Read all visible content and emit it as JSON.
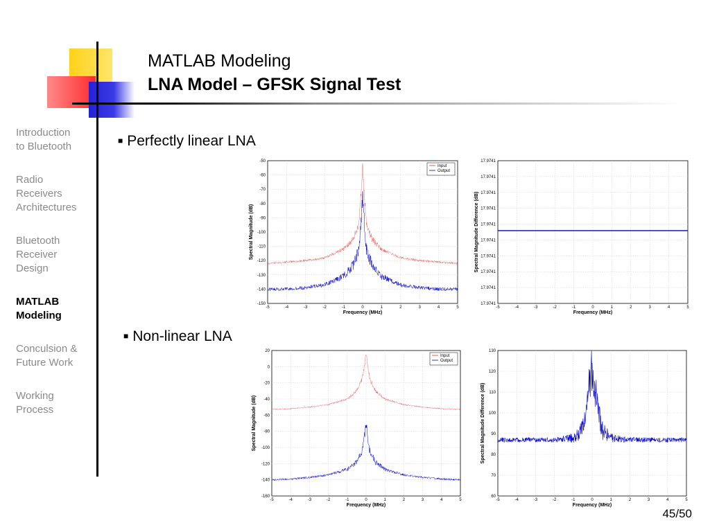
{
  "slide": {
    "title_line1": "MATLAB Modeling",
    "title_line2": "LNA Model – GFSK Signal Test",
    "page_number": "45/50"
  },
  "sidebar": {
    "items": [
      {
        "label": "Introduction\nto Bluetooth",
        "active": false
      },
      {
        "label": "Radio\nReceivers\nArchitectures",
        "active": false
      },
      {
        "label": "Bluetooth\nReceiver\nDesign",
        "active": false
      },
      {
        "label": "MATLAB\nModeling",
        "active": true
      },
      {
        "label": "Conculsion &\nFuture Work",
        "active": false
      },
      {
        "label": "Working\nProcess",
        "active": false
      }
    ]
  },
  "bullets": {
    "linear": "Perfectly linear LNA",
    "nonlinear": "Non-linear LNA"
  },
  "colors": {
    "input_series": "#e03030",
    "output_series": "#0000cc",
    "grid": "#cfcfcf"
  },
  "chart_data": [
    {
      "type": "line",
      "xlabel": "Frequency (MHz)",
      "ylabel": "Spectral Magnitude (dB)",
      "xlim": [
        -5,
        5
      ],
      "ylim": [
        -150,
        -50
      ],
      "xticks": [
        "-5",
        "-4",
        "-3",
        "-2",
        "-1",
        "0",
        "1",
        "2",
        "3",
        "4",
        "5"
      ],
      "yticks": [
        "-50",
        "-60",
        "-70",
        "-80",
        "-90",
        "-100",
        "-110",
        "-120",
        "-130",
        "-140",
        "-150"
      ],
      "legend": [
        "Input",
        "Output"
      ],
      "legend_position": "top-right",
      "grid": true,
      "series": [
        {
          "name": "Input",
          "x": [
            -5,
            -4,
            -3,
            -2,
            -1,
            -0.5,
            -0.2,
            0,
            0.2,
            0.5,
            1,
            2,
            3,
            4,
            5
          ],
          "y": [
            -122,
            -121,
            -120,
            -118,
            -112,
            -105,
            -95,
            -55,
            -95,
            -105,
            -112,
            -118,
            -120,
            -121,
            -122
          ]
        },
        {
          "name": "Output",
          "x": [
            -5,
            -4,
            -3,
            -2,
            -1,
            -0.5,
            -0.2,
            0,
            0.2,
            0.5,
            1,
            2,
            3,
            4,
            5
          ],
          "y": [
            -140,
            -140,
            -139,
            -137,
            -131,
            -123,
            -113,
            -75,
            -113,
            -123,
            -131,
            -137,
            -139,
            -140,
            -140
          ]
        }
      ]
    },
    {
      "type": "line",
      "xlabel": "Frequency (MHz)",
      "ylabel": "Spectral Magnitude Difference (dB)",
      "xlim": [
        -5,
        5
      ],
      "xticks": [
        "-5",
        "-4",
        "-3",
        "-2",
        "-1",
        "0",
        "1",
        "2",
        "3",
        "4",
        "5"
      ],
      "yticks": [
        "17.9741",
        "17.9741",
        "17.9741",
        "17.9741",
        "17.9741",
        "17.9741",
        "17.9741",
        "17.9741",
        "17.9741",
        "17.9741"
      ],
      "grid": true,
      "series": [
        {
          "x": [
            -5,
            5
          ],
          "y": [
            17.9741,
            17.9741
          ]
        }
      ]
    },
    {
      "type": "line",
      "xlabel": "Frequency (MHz)",
      "ylabel": "Spectral Magnitude (dB)",
      "xlim": [
        -5,
        5
      ],
      "ylim": [
        -160,
        20
      ],
      "xticks": [
        "-5",
        "-4",
        "-3",
        "-2",
        "-1",
        "0",
        "1",
        "2",
        "3",
        "4",
        "5"
      ],
      "yticks": [
        "20",
        "0",
        "-20",
        "-40",
        "-60",
        "-80",
        "-100",
        "-120",
        "-140",
        "-160"
      ],
      "legend": [
        "Input",
        "Output"
      ],
      "legend_position": "top-right",
      "grid": true,
      "series": [
        {
          "name": "Input",
          "x": [
            -5,
            -4,
            -3,
            -2,
            -1,
            -0.5,
            -0.2,
            0,
            0.2,
            0.5,
            1,
            2,
            3,
            4,
            5
          ],
          "y": [
            -53,
            -52,
            -50,
            -47,
            -40,
            -30,
            -15,
            15,
            -15,
            -30,
            -40,
            -47,
            -50,
            -52,
            -53
          ]
        },
        {
          "name": "Output",
          "x": [
            -5,
            -4,
            -3,
            -2,
            -1,
            -0.5,
            -0.2,
            0,
            0.2,
            0.5,
            1,
            2,
            3,
            4,
            5
          ],
          "y": [
            -140,
            -139,
            -137,
            -134,
            -127,
            -118,
            -105,
            -72,
            -105,
            -118,
            -127,
            -134,
            -137,
            -139,
            -140
          ]
        }
      ]
    },
    {
      "type": "line",
      "xlabel": "Frequency (MHz)",
      "ylabel": "Spectral Magnitude Difference (dB)",
      "xlim": [
        -5,
        5
      ],
      "ylim": [
        60,
        130
      ],
      "xticks": [
        "-5",
        "-4",
        "-3",
        "-2",
        "-1",
        "0",
        "1",
        "2",
        "3",
        "4",
        "5"
      ],
      "yticks": [
        "130",
        "120",
        "110",
        "100",
        "90",
        "80",
        "70",
        "60"
      ],
      "grid": true,
      "series": [
        {
          "x": [
            -5,
            -3,
            -2,
            -1,
            -0.5,
            -0.2,
            0,
            0.2,
            0.5,
            1,
            2,
            3,
            5
          ],
          "y": [
            87,
            87,
            87,
            88,
            92,
            110,
            122,
            110,
            92,
            88,
            87,
            87,
            87
          ]
        }
      ]
    }
  ]
}
